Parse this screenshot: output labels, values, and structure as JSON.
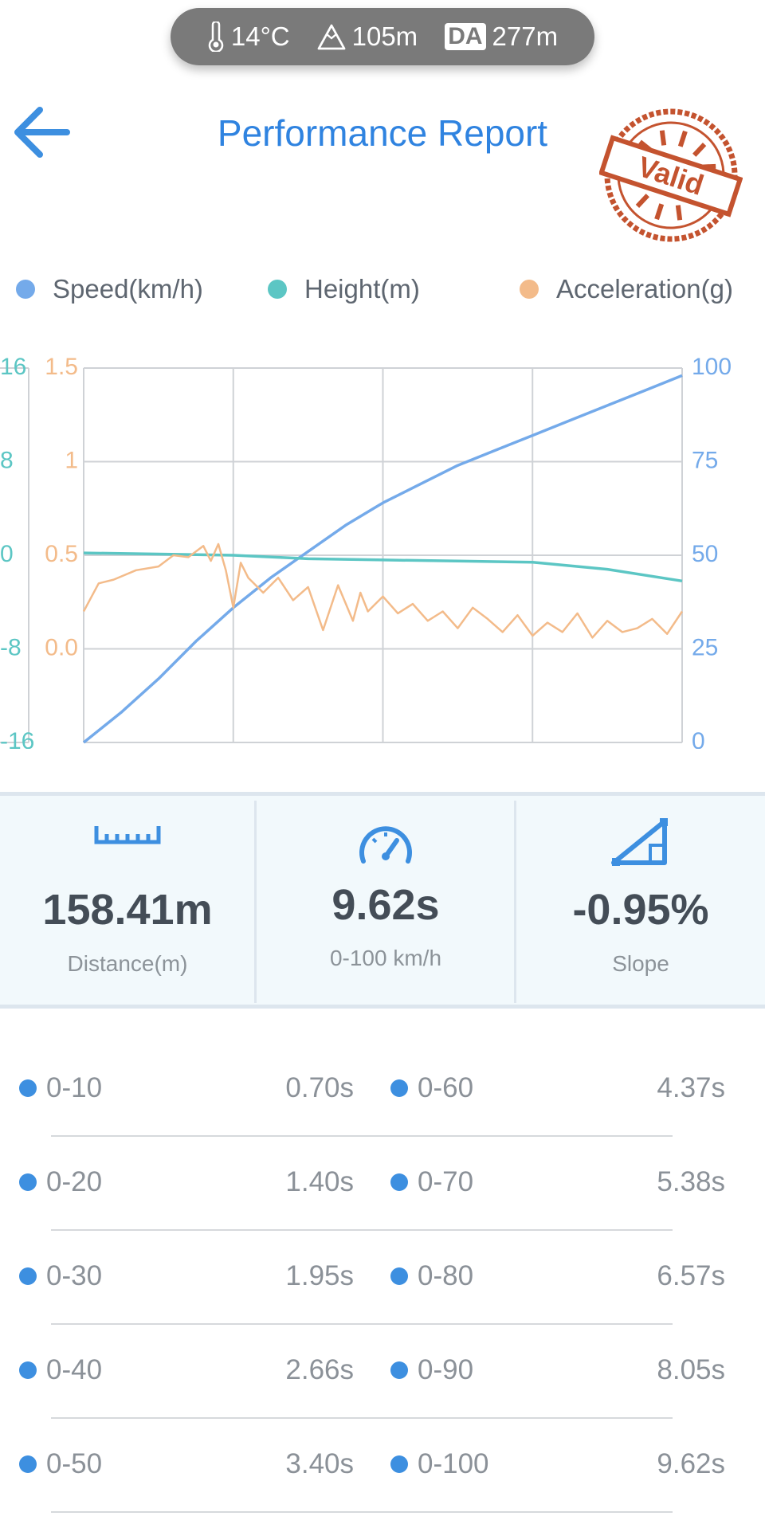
{
  "status": {
    "temperature": "14°C",
    "altitude": "105m",
    "da_label": "DA",
    "density_altitude": "277m",
    "icons": [
      "thermometer-icon",
      "mountain-icon"
    ]
  },
  "header": {
    "title": "Performance Report",
    "stamp_text": "Valid"
  },
  "legend": [
    {
      "label": "Speed(km/h)",
      "color": "#74aaea"
    },
    {
      "label": "Height(m)",
      "color": "#5cc6c4"
    },
    {
      "label": "Acceleration(g)",
      "color": "#f3bb8a"
    }
  ],
  "chart_data": {
    "type": "line",
    "x_ticks": [
      0,
      1,
      2,
      3,
      4
    ],
    "series": [
      {
        "name": "Speed(km/h)",
        "axis": "right",
        "color": "#74aaea",
        "x": [
          0,
          0.25,
          0.5,
          0.75,
          1.0,
          1.25,
          1.5,
          1.75,
          2.0,
          2.25,
          2.5,
          2.75,
          3.0,
          3.25,
          3.5,
          3.75,
          4.0
        ],
        "values": [
          0,
          8,
          17,
          27,
          36,
          44,
          51,
          58,
          64,
          69,
          74,
          78,
          82,
          86,
          90,
          94,
          98
        ]
      },
      {
        "name": "Height(m)",
        "axis": "left-outer",
        "color": "#5cc6c4",
        "x": [
          0,
          0.5,
          1.0,
          1.5,
          2.0,
          2.5,
          3.0,
          3.5,
          4.0
        ],
        "values": [
          0.2,
          0.1,
          0,
          -0.3,
          -0.4,
          -0.5,
          -0.6,
          -1.2,
          -2.2
        ]
      },
      {
        "name": "Acceleration(g)",
        "axis": "left-inner",
        "color": "#f3bb8a",
        "x": [
          0,
          0.1,
          0.2,
          0.35,
          0.5,
          0.6,
          0.7,
          0.8,
          0.85,
          0.9,
          0.95,
          1.0,
          1.05,
          1.1,
          1.2,
          1.3,
          1.4,
          1.5,
          1.6,
          1.7,
          1.8,
          1.85,
          1.9,
          2.0,
          2.1,
          2.2,
          2.3,
          2.4,
          2.5,
          2.6,
          2.7,
          2.8,
          2.9,
          3.0,
          3.1,
          3.2,
          3.3,
          3.4,
          3.5,
          3.6,
          3.7,
          3.8,
          3.9,
          4.0
        ],
        "values": [
          0.2,
          0.35,
          0.37,
          0.42,
          0.44,
          0.5,
          0.49,
          0.55,
          0.47,
          0.56,
          0.42,
          0.22,
          0.46,
          0.38,
          0.3,
          0.38,
          0.26,
          0.33,
          0.1,
          0.34,
          0.15,
          0.3,
          0.2,
          0.28,
          0.19,
          0.24,
          0.15,
          0.2,
          0.11,
          0.22,
          0.16,
          0.09,
          0.18,
          0.07,
          0.14,
          0.09,
          0.19,
          0.06,
          0.15,
          0.09,
          0.11,
          0.16,
          0.08,
          0.2
        ]
      }
    ],
    "y_axes": {
      "left_outer": {
        "ticks": [
          "16",
          "8",
          "0",
          "-8",
          "-16"
        ],
        "color": "#5cc6c4",
        "range": [
          -16,
          16
        ]
      },
      "left_inner": {
        "ticks": [
          "1.5",
          "1",
          "0.5",
          "0.0"
        ],
        "color": "#f3bb8a",
        "range": [
          -0.5,
          1.5
        ]
      },
      "right": {
        "ticks": [
          "100",
          "75",
          "50",
          "25",
          "0"
        ],
        "color": "#74aaea",
        "range": [
          0,
          100
        ]
      }
    },
    "grid": true
  },
  "stats": [
    {
      "value": "158.41m",
      "label": "Distance(m)",
      "icon": "ruler-icon"
    },
    {
      "value": "9.62s",
      "label": "0-100 km/h",
      "icon": "speedometer-icon"
    },
    {
      "value": "-0.95%",
      "label": "Slope",
      "icon": "slope-icon"
    }
  ],
  "splits": [
    {
      "left_label": "0-10",
      "left_time": "0.70s",
      "right_label": "0-60",
      "right_time": "4.37s"
    },
    {
      "left_label": "0-20",
      "left_time": "1.40s",
      "right_label": "0-70",
      "right_time": "5.38s"
    },
    {
      "left_label": "0-30",
      "left_time": "1.95s",
      "right_label": "0-80",
      "right_time": "6.57s"
    },
    {
      "left_label": "0-40",
      "left_time": "2.66s",
      "right_label": "0-90",
      "right_time": "8.05s"
    },
    {
      "left_label": "0-50",
      "left_time": "3.40s",
      "right_label": "0-100",
      "right_time": "9.62s"
    }
  ]
}
